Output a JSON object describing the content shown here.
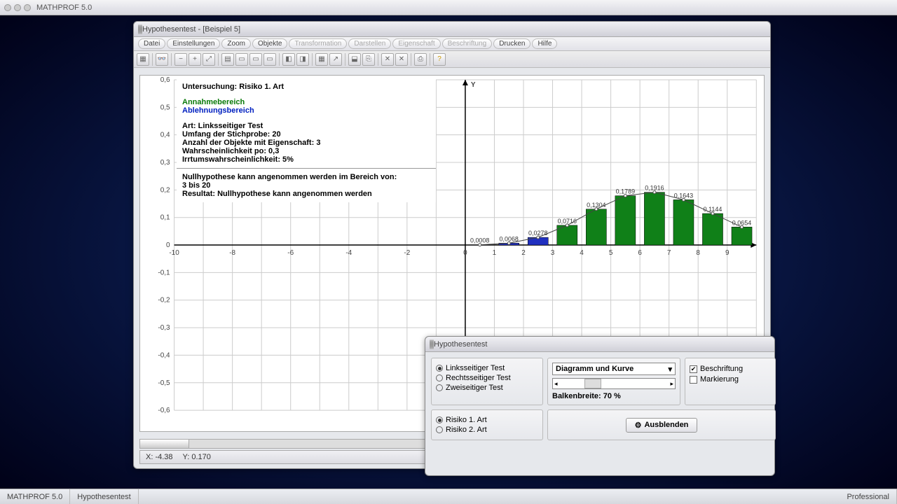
{
  "app": {
    "title": "MATHPROF 5.0"
  },
  "statusbar": {
    "left1": "MATHPROF 5.0",
    "left2": "Hypothesentest",
    "right": "Professional"
  },
  "docwin": {
    "title": "Hypothesentest - [Beispiel 5]",
    "menu": [
      "Datei",
      "Einstellungen",
      "Zoom",
      "Objekte",
      "Transformation",
      "Darstellen",
      "Eigenschaft",
      "Beschriftung",
      "Drucken",
      "Hilfe"
    ],
    "menu_disabled": [
      4,
      5,
      6,
      7
    ]
  },
  "coord": {
    "x_label": "X: -4.38",
    "y_label": "Y: 0.170"
  },
  "info": {
    "header": "Untersuchung: Risiko 1. Art",
    "annahme": "Annahmebereich",
    "ablehnung": "Ablehnungsbereich",
    "art": "Art: Linksseitiger Test",
    "umfang": "Umfang der Stichprobe: 20",
    "anzahl": "Anzahl der Objekte mit Eigenschaft: 3",
    "wahr": "Wahrscheinlichkeit po: 0,3",
    "irrtum": "Irrtumswahrscheinlichkeit: 5%",
    "null1": "Nullhypothese kann angenommen werden im Bereich von:",
    "null2": "3 bis 20",
    "result": "Resultat: Nullhypothese kann angenommen werden"
  },
  "chart": {
    "type": "bar",
    "y_axis_label": "Y",
    "xlim": [
      -10,
      10
    ],
    "ylim": [
      -0.6,
      0.6
    ],
    "xticks": [
      -10,
      -8,
      -6,
      -4,
      -2,
      0,
      1,
      2,
      3,
      4,
      5,
      6,
      7,
      8,
      9
    ],
    "yticks": [
      -0.6,
      -0.5,
      -0.4,
      -0.3,
      -0.2,
      -0.1,
      0,
      0.1,
      0.2,
      0.3,
      0.4,
      0.5,
      0.6
    ],
    "bar_width": 0.7,
    "bars": [
      {
        "x": 0,
        "v": 0.0008,
        "lbl": "0,0008",
        "color": "#2030c0"
      },
      {
        "x": 1,
        "v": 0.0068,
        "lbl": "0,0068",
        "color": "#2030c0"
      },
      {
        "x": 2,
        "v": 0.0278,
        "lbl": "0,0278",
        "color": "#2030c0"
      },
      {
        "x": 3,
        "v": 0.0716,
        "lbl": "0,0716",
        "color": "#108018"
      },
      {
        "x": 4,
        "v": 0.1304,
        "lbl": "0,1304",
        "color": "#108018"
      },
      {
        "x": 5,
        "v": 0.1789,
        "lbl": "0,1789",
        "color": "#108018"
      },
      {
        "x": 6,
        "v": 0.1916,
        "lbl": "0,1916",
        "color": "#108018"
      },
      {
        "x": 7,
        "v": 0.1643,
        "lbl": "0,1643",
        "color": "#108018"
      },
      {
        "x": 8,
        "v": 0.1144,
        "lbl": "0,1144",
        "color": "#108018"
      },
      {
        "x": 9,
        "v": 0.0654,
        "lbl": "0,0654",
        "color": "#108018"
      }
    ],
    "colors": {
      "blue": "#2030c0",
      "green": "#108018",
      "grid": "#cccccc",
      "axis": "#000000",
      "bg": "#ffffff",
      "curve": "#444444"
    }
  },
  "dlg": {
    "title": "Hypothesentest",
    "tests": {
      "links": "Linksseitiger Test",
      "rechts": "Rechtsseitiger Test",
      "zwei": "Zweiseitiger Test",
      "selected": "links"
    },
    "risiko": {
      "r1": "Risiko 1. Art",
      "r2": "Risiko 2. Art",
      "selected": "r1"
    },
    "display": {
      "combo": "Diagramm und Kurve",
      "balken_label": "Balkenbreite: 70 %"
    },
    "opts": {
      "beschriftung": "Beschriftung",
      "beschriftung_on": true,
      "markierung": "Markierung",
      "markierung_on": false
    },
    "btn": "Ausblenden"
  }
}
